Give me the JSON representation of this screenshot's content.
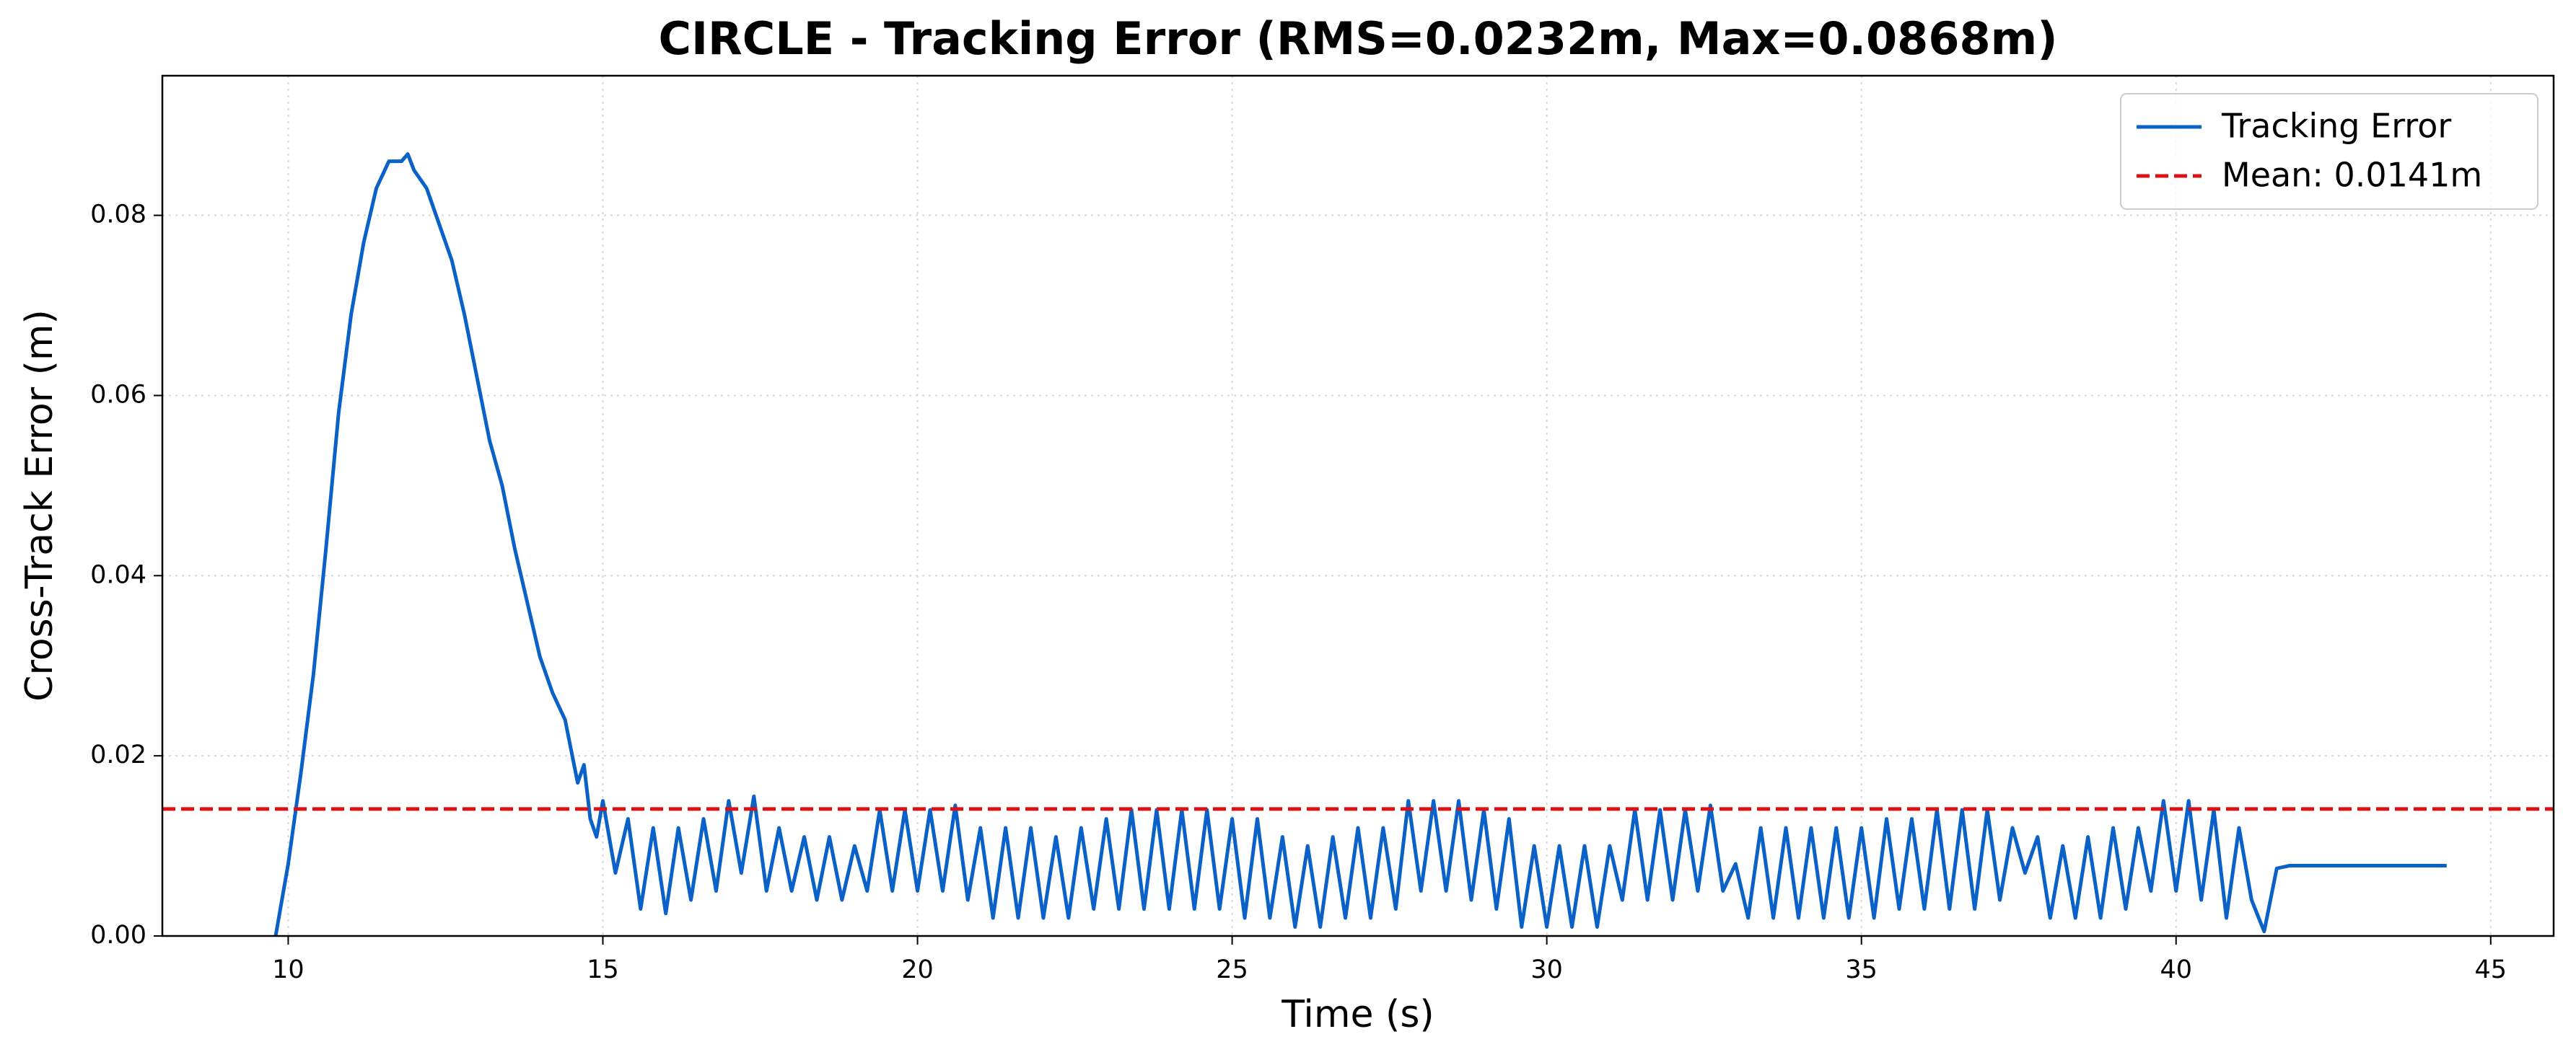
{
  "chart_data": {
    "type": "line",
    "title": "CIRCLE - Tracking Error (RMS=0.0232m, Max=0.0868m)",
    "x_label": "Time (s)",
    "y_label": "Cross-Track Error (m)",
    "x": [
      9.8,
      10.0,
      10.2,
      10.4,
      10.6,
      10.8,
      11.0,
      11.2,
      11.4,
      11.6,
      11.8,
      11.9,
      12.0,
      12.2,
      12.4,
      12.6,
      12.8,
      13.0,
      13.2,
      13.4,
      13.6,
      13.8,
      14.0,
      14.2,
      14.4,
      14.6,
      14.7,
      14.8,
      14.9,
      15.0,
      15.2,
      15.4,
      15.6,
      15.8,
      16.0,
      16.2,
      16.4,
      16.6,
      16.8,
      17.0,
      17.2,
      17.4,
      17.6,
      17.8,
      18.0,
      18.2,
      18.4,
      18.6,
      18.8,
      19.0,
      19.2,
      19.4,
      19.6,
      19.8,
      20.0,
      20.2,
      20.4,
      20.6,
      20.8,
      21.0,
      21.2,
      21.4,
      21.6,
      21.8,
      22.0,
      22.2,
      22.4,
      22.6,
      22.8,
      23.0,
      23.2,
      23.4,
      23.6,
      23.8,
      24.0,
      24.2,
      24.4,
      24.6,
      24.8,
      25.0,
      25.2,
      25.4,
      25.6,
      25.8,
      26.0,
      26.2,
      26.4,
      26.6,
      26.8,
      27.0,
      27.2,
      27.4,
      27.6,
      27.8,
      28.0,
      28.2,
      28.4,
      28.6,
      28.8,
      29.0,
      29.2,
      29.4,
      29.6,
      29.8,
      30.0,
      30.2,
      30.4,
      30.6,
      30.8,
      31.0,
      31.2,
      31.4,
      31.6,
      31.8,
      32.0,
      32.2,
      32.4,
      32.6,
      32.8,
      33.0,
      33.2,
      33.4,
      33.6,
      33.8,
      34.0,
      34.2,
      34.4,
      34.6,
      34.8,
      35.0,
      35.2,
      35.4,
      35.6,
      35.8,
      36.0,
      36.2,
      36.4,
      36.6,
      36.8,
      37.0,
      37.2,
      37.4,
      37.6,
      37.8,
      38.0,
      38.2,
      38.4,
      38.6,
      38.8,
      39.0,
      39.2,
      39.4,
      39.6,
      39.8,
      40.0,
      40.2,
      40.4,
      40.6,
      40.8,
      41.0,
      41.2,
      41.4,
      41.6,
      41.8,
      44.3
    ],
    "series": [
      {
        "name": "Tracking Error",
        "color": "#0a62c8",
        "values": [
          0.0,
          0.008,
          0.018,
          0.029,
          0.043,
          0.058,
          0.069,
          0.077,
          0.083,
          0.086,
          0.086,
          0.0868,
          0.085,
          0.083,
          0.079,
          0.075,
          0.069,
          0.062,
          0.055,
          0.05,
          0.043,
          0.037,
          0.031,
          0.027,
          0.024,
          0.017,
          0.019,
          0.013,
          0.011,
          0.015,
          0.007,
          0.013,
          0.003,
          0.012,
          0.0025,
          0.012,
          0.004,
          0.013,
          0.005,
          0.015,
          0.007,
          0.0155,
          0.005,
          0.012,
          0.005,
          0.011,
          0.004,
          0.011,
          0.004,
          0.01,
          0.005,
          0.014,
          0.005,
          0.014,
          0.005,
          0.014,
          0.005,
          0.0145,
          0.004,
          0.012,
          0.002,
          0.012,
          0.002,
          0.012,
          0.002,
          0.011,
          0.002,
          0.012,
          0.003,
          0.013,
          0.003,
          0.014,
          0.003,
          0.014,
          0.003,
          0.014,
          0.003,
          0.014,
          0.003,
          0.013,
          0.002,
          0.013,
          0.002,
          0.011,
          0.001,
          0.01,
          0.001,
          0.011,
          0.002,
          0.012,
          0.002,
          0.012,
          0.003,
          0.015,
          0.005,
          0.015,
          0.005,
          0.015,
          0.004,
          0.014,
          0.003,
          0.013,
          0.001,
          0.01,
          0.001,
          0.01,
          0.001,
          0.01,
          0.001,
          0.01,
          0.004,
          0.014,
          0.004,
          0.014,
          0.004,
          0.014,
          0.005,
          0.0145,
          0.005,
          0.008,
          0.002,
          0.012,
          0.002,
          0.012,
          0.002,
          0.012,
          0.002,
          0.012,
          0.002,
          0.012,
          0.002,
          0.013,
          0.003,
          0.013,
          0.003,
          0.014,
          0.003,
          0.014,
          0.003,
          0.014,
          0.004,
          0.012,
          0.007,
          0.011,
          0.002,
          0.01,
          0.002,
          0.011,
          0.002,
          0.012,
          0.003,
          0.012,
          0.005,
          0.015,
          0.005,
          0.015,
          0.004,
          0.014,
          0.002,
          0.012,
          0.004,
          0.0005,
          0.0075,
          0.0078,
          0.0078
        ]
      }
    ],
    "mean_line": {
      "value": 0.0141,
      "label": "Mean: 0.0141m",
      "color": "#dd1111"
    },
    "xlim": [
      8,
      46
    ],
    "ylim": [
      0,
      0.0955
    ],
    "xticks": [
      10,
      15,
      20,
      25,
      30,
      35,
      40,
      45
    ],
    "yticks": [
      {
        "value": 0,
        "label": "0.00"
      },
      {
        "value": 0.02,
        "label": "0.02"
      },
      {
        "value": 0.04,
        "label": "0.04"
      },
      {
        "value": 0.06,
        "label": "0.06"
      },
      {
        "value": 0.08,
        "label": "0.08"
      }
    ],
    "grid": true,
    "legend": "upper right"
  }
}
